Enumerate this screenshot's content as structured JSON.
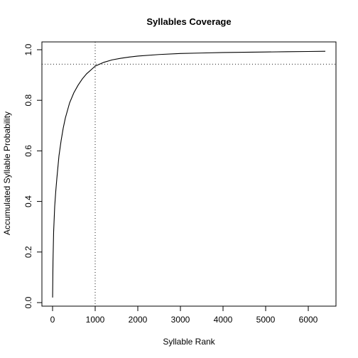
{
  "chart_data": {
    "type": "line",
    "title": "Syllables Coverage",
    "xlabel": "Syllable Rank",
    "ylabel": "Accumulated Syllable Probability",
    "xlim": [
      0,
      6400
    ],
    "ylim": [
      0.02,
      0.995
    ],
    "x_ticks": [
      0,
      1000,
      2000,
      3000,
      4000,
      5000,
      6000
    ],
    "x_tick_labels": [
      "0",
      "1000",
      "2000",
      "3000",
      "4000",
      "5000",
      "6000"
    ],
    "y_ticks": [
      0.0,
      0.2,
      0.4,
      0.6,
      0.8,
      1.0
    ],
    "y_tick_labels": [
      "0.0",
      "0.2",
      "0.4",
      "0.6",
      "0.8",
      "1.0"
    ],
    "grid": false,
    "legend": "none",
    "series": [
      {
        "x": [
          1,
          10,
          25,
          50,
          75,
          100,
          150,
          200,
          250,
          300,
          400,
          500,
          600,
          700,
          800,
          900,
          1000,
          1200,
          1400,
          1600,
          1800,
          2000,
          2500,
          3000,
          3500,
          4000,
          4500,
          5000,
          5500,
          6000,
          6400
        ],
        "y": [
          0.02,
          0.16,
          0.28,
          0.38,
          0.44,
          0.49,
          0.58,
          0.64,
          0.69,
          0.73,
          0.79,
          0.83,
          0.86,
          0.885,
          0.905,
          0.92,
          0.935,
          0.95,
          0.96,
          0.966,
          0.971,
          0.975,
          0.981,
          0.985,
          0.987,
          0.989,
          0.99,
          0.991,
          0.992,
          0.993,
          0.994
        ]
      }
    ],
    "reference_lines": {
      "vertical_x": 1000,
      "horizontal_y": 0.943
    }
  }
}
